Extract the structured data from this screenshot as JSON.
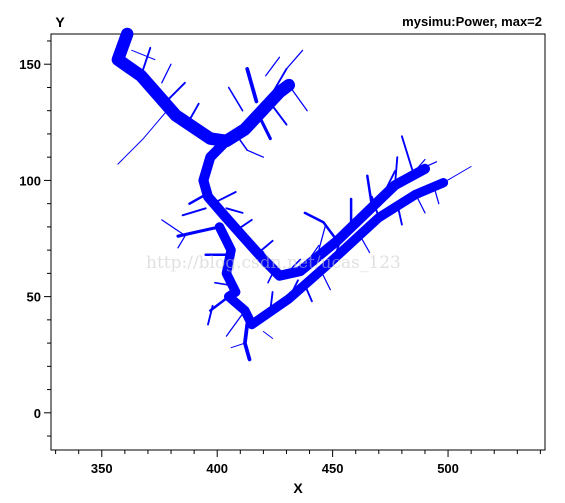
{
  "chart_data": {
    "type": "line",
    "title": "mysimu:Power, max=2",
    "xlabel": "X",
    "ylabel": "Y",
    "xlim": [
      328,
      542
    ],
    "ylim": [
      -16,
      163
    ],
    "x_ticks": [
      350,
      400,
      450,
      500
    ],
    "y_ticks": [
      0,
      50,
      100,
      150
    ],
    "grid": false,
    "legend": "none",
    "line_color": "#0000ff",
    "width_encoding": "power",
    "max_power": 2,
    "series": [
      {
        "power": 2.0,
        "points": [
          [
            361,
            163
          ],
          [
            357,
            152
          ],
          [
            367,
            145
          ],
          [
            382,
            128
          ],
          [
            397,
            118
          ],
          [
            404,
            117
          ],
          [
            412,
            122
          ],
          [
            427,
            138
          ],
          [
            431,
            141
          ]
        ]
      },
      {
        "power": 1.6,
        "points": [
          [
            404,
            117
          ],
          [
            397,
            110
          ],
          [
            394,
            100
          ],
          [
            396,
            93
          ],
          [
            403,
            85
          ],
          [
            411,
            76
          ],
          [
            420,
            66
          ],
          [
            427,
            59
          ],
          [
            436,
            61
          ],
          [
            452,
            74
          ],
          [
            477,
            98
          ],
          [
            490,
            105
          ]
        ]
      },
      {
        "power": 1.5,
        "points": [
          [
            401,
            80
          ],
          [
            406,
            70
          ],
          [
            404,
            60
          ],
          [
            408,
            52
          ],
          [
            405,
            50
          ],
          [
            412,
            44
          ],
          [
            415,
            38
          ],
          [
            431,
            49
          ],
          [
            447,
            63
          ],
          [
            470,
            84
          ],
          [
            486,
            94
          ],
          [
            498,
            99
          ]
        ]
      },
      {
        "power": 0.6,
        "points": [
          [
            413,
            38
          ],
          [
            412,
            30
          ],
          [
            414,
            23
          ]
        ]
      },
      {
        "power": 0.1,
        "points": [
          [
            498,
            99
          ],
          [
            510,
            106
          ]
        ]
      },
      {
        "power": 0.1,
        "points": [
          [
            380,
            132
          ],
          [
            368,
            118
          ],
          [
            357,
            107
          ]
        ]
      },
      {
        "power": 0.3,
        "points": [
          [
            367,
            145
          ],
          [
            371,
            157
          ]
        ]
      },
      {
        "power": 0.2,
        "points": [
          [
            376,
            142
          ],
          [
            380,
            150
          ]
        ]
      },
      {
        "power": 0.15,
        "points": [
          [
            373,
            152
          ],
          [
            363,
            156
          ]
        ]
      },
      {
        "power": 0.3,
        "points": [
          [
            379,
            135
          ],
          [
            386,
            142
          ]
        ]
      },
      {
        "power": 0.3,
        "points": [
          [
            388,
            126
          ],
          [
            392,
            133
          ]
        ]
      },
      {
        "power": 0.6,
        "points": [
          [
            417,
            134
          ],
          [
            413,
            148
          ]
        ]
      },
      {
        "power": 0.3,
        "points": [
          [
            423,
            136
          ],
          [
            430,
            148
          ]
        ]
      },
      {
        "power": 0.2,
        "points": [
          [
            430,
            148
          ],
          [
            437,
            156
          ]
        ]
      },
      {
        "power": 0.25,
        "points": [
          [
            411,
            130
          ],
          [
            405,
            140
          ]
        ]
      },
      {
        "power": 0.2,
        "points": [
          [
            421,
            145
          ],
          [
            427,
            153
          ]
        ]
      },
      {
        "power": 0.2,
        "points": [
          [
            431,
            141
          ],
          [
            439,
            130
          ]
        ]
      },
      {
        "power": 0.5,
        "points": [
          [
            418,
            128
          ],
          [
            423,
            118
          ]
        ]
      },
      {
        "power": 0.3,
        "points": [
          [
            424,
            132
          ],
          [
            430,
            124
          ]
        ]
      },
      {
        "power": 0.25,
        "points": [
          [
            408,
            120
          ],
          [
            413,
            113
          ]
        ]
      },
      {
        "power": 0.2,
        "points": [
          [
            413,
            113
          ],
          [
            420,
            110
          ]
        ]
      },
      {
        "power": 0.4,
        "points": [
          [
            397,
            95
          ],
          [
            388,
            90
          ]
        ]
      },
      {
        "power": 0.3,
        "points": [
          [
            395,
            88
          ],
          [
            385,
            85
          ]
        ]
      },
      {
        "power": 0.3,
        "points": [
          [
            400,
            91
          ],
          [
            408,
            95
          ]
        ]
      },
      {
        "power": 0.3,
        "points": [
          [
            404,
            88
          ],
          [
            411,
            86
          ]
        ]
      },
      {
        "power": 0.5,
        "points": [
          [
            401,
            80
          ],
          [
            392,
            78
          ],
          [
            383,
            76
          ]
        ]
      },
      {
        "power": 0.2,
        "points": [
          [
            386,
            76
          ],
          [
            383,
            71
          ]
        ]
      },
      {
        "power": 0.2,
        "points": [
          [
            385,
            77
          ],
          [
            376,
            83
          ]
        ]
      },
      {
        "power": 0.4,
        "points": [
          [
            405,
            68
          ],
          [
            395,
            68
          ]
        ]
      },
      {
        "power": 0.3,
        "points": [
          [
            409,
            79
          ],
          [
            415,
            83
          ]
        ]
      },
      {
        "power": 0.3,
        "points": [
          [
            414,
            74
          ],
          [
            420,
            69
          ]
        ]
      },
      {
        "power": 0.3,
        "points": [
          [
            418,
            69
          ],
          [
            424,
            74
          ]
        ]
      },
      {
        "power": 0.25,
        "points": [
          [
            405,
            55
          ],
          [
            399,
            56
          ]
        ]
      },
      {
        "power": 0.4,
        "points": [
          [
            405,
            50
          ],
          [
            397,
            44
          ]
        ]
      },
      {
        "power": 0.3,
        "points": [
          [
            398,
            46
          ],
          [
            396,
            38
          ]
        ]
      },
      {
        "power": 0.2,
        "points": [
          [
            412,
            44
          ],
          [
            404,
            33
          ]
        ]
      },
      {
        "power": 0.25,
        "points": [
          [
            425,
            62
          ],
          [
            422,
            56
          ]
        ]
      },
      {
        "power": 0.25,
        "points": [
          [
            430,
            60
          ],
          [
            436,
            66
          ]
        ]
      },
      {
        "power": 0.2,
        "points": [
          [
            437,
            62
          ],
          [
            444,
            72
          ]
        ]
      },
      {
        "power": 0.2,
        "points": [
          [
            444,
            70
          ],
          [
            447,
            81
          ]
        ]
      },
      {
        "power": 0.4,
        "points": [
          [
            452,
            74
          ],
          [
            446,
            82
          ],
          [
            438,
            86
          ]
        ]
      },
      {
        "power": 0.4,
        "points": [
          [
            458,
            80
          ],
          [
            458,
            92
          ]
        ]
      },
      {
        "power": 0.4,
        "points": [
          [
            467,
            89
          ],
          [
            465,
            102
          ]
        ]
      },
      {
        "power": 0.3,
        "points": [
          [
            471,
            92
          ],
          [
            477,
            104
          ]
        ]
      },
      {
        "power": 0.3,
        "points": [
          [
            477,
            98
          ],
          [
            478,
            110
          ]
        ]
      },
      {
        "power": 0.2,
        "points": [
          [
            483,
            101
          ],
          [
            490,
            109
          ]
        ]
      },
      {
        "power": 0.3,
        "points": [
          [
            485,
            103
          ],
          [
            480,
            119
          ]
        ]
      },
      {
        "power": 0.2,
        "points": [
          [
            486,
            104
          ],
          [
            495,
            108
          ]
        ]
      },
      {
        "power": 0.3,
        "points": [
          [
            423,
            44
          ],
          [
            424,
            52
          ]
        ]
      },
      {
        "power": 0.3,
        "points": [
          [
            431,
            49
          ],
          [
            435,
            57
          ]
        ]
      },
      {
        "power": 0.3,
        "points": [
          [
            438,
            55
          ],
          [
            441,
            48
          ]
        ]
      },
      {
        "power": 0.2,
        "points": [
          [
            445,
            61
          ],
          [
            449,
            53
          ]
        ]
      },
      {
        "power": 0.3,
        "points": [
          [
            450,
            65
          ],
          [
            453,
            73
          ]
        ]
      },
      {
        "power": 0.3,
        "points": [
          [
            455,
            70
          ],
          [
            461,
            76
          ]
        ]
      },
      {
        "power": 0.2,
        "points": [
          [
            462,
            76
          ],
          [
            466,
            69
          ]
        ]
      },
      {
        "power": 0.3,
        "points": [
          [
            470,
            84
          ],
          [
            467,
            93
          ]
        ]
      },
      {
        "power": 0.3,
        "points": [
          [
            478,
            90
          ],
          [
            480,
            81
          ]
        ]
      },
      {
        "power": 0.2,
        "points": [
          [
            486,
            94
          ],
          [
            490,
            86
          ]
        ]
      },
      {
        "power": 0.2,
        "points": [
          [
            494,
            97
          ],
          [
            496,
            90
          ]
        ]
      },
      {
        "power": 0.15,
        "points": [
          [
            412,
            30
          ],
          [
            406,
            28
          ]
        ]
      },
      {
        "power": 0.15,
        "points": [
          [
            420,
            35
          ],
          [
            424,
            32
          ]
        ]
      }
    ]
  },
  "watermark": {
    "text": "http://blog.csdn.net/ucas_123"
  }
}
